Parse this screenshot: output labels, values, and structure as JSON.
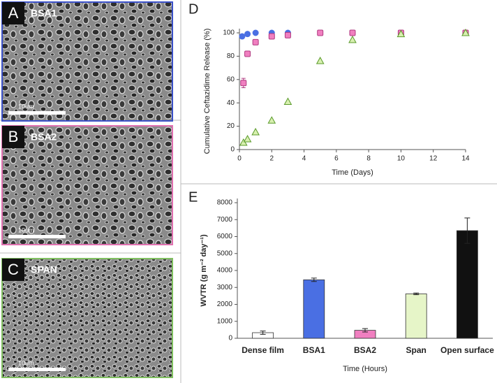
{
  "images": [
    {
      "letter": "A",
      "label": "BSA1",
      "scale_bar": "10um",
      "border": "#3a50c8"
    },
    {
      "letter": "B",
      "label": "BSA2",
      "scale_bar": "10um",
      "border": "#e070b0"
    },
    {
      "letter": "C",
      "label": "SPAN",
      "scale_bar": "10um",
      "border": "#80c060"
    }
  ],
  "chart_data": [
    {
      "type": "scatter",
      "letter": "D",
      "x_label": "Time (Days)",
      "y_label": "Cumulative Ceftazidime Release (%)",
      "xlim": [
        0,
        14
      ],
      "xticks": [
        0,
        2,
        4,
        6,
        8,
        10,
        12,
        14
      ],
      "ylim": [
        0,
        100
      ],
      "yticks": [
        0,
        20,
        40,
        60,
        80,
        100
      ],
      "series": [
        {
          "color": "#4a6fe3",
          "marker": "circle",
          "x": [
            0.17,
            0.5,
            1,
            2,
            3
          ],
          "values": [
            97,
            99,
            100,
            100,
            100
          ]
        },
        {
          "color": "#f07fc0",
          "marker": "square",
          "x": [
            0.25,
            0.5,
            1,
            2,
            3,
            5,
            7,
            10,
            14
          ],
          "values": [
            57,
            82,
            92,
            97,
            98,
            100,
            100,
            100,
            100
          ],
          "errors": [
            4,
            null,
            null,
            null,
            null,
            null,
            null,
            null,
            null
          ]
        },
        {
          "color": "#d8f0b0",
          "marker": "triangle",
          "x": [
            0.25,
            0.5,
            1,
            2,
            3,
            5,
            7,
            10,
            14
          ],
          "values": [
            6,
            9,
            15,
            25,
            41,
            76,
            94,
            99,
            100
          ]
        }
      ]
    },
    {
      "type": "bar",
      "letter": "E",
      "x_label": "Time (Hours)",
      "y_label": "WVTR (g m⁻² day⁻¹)",
      "categories": [
        "Dense film",
        "BSA1",
        "BSA2",
        "Span",
        "Open surface"
      ],
      "values": [
        330,
        3450,
        470,
        2620,
        6350
      ],
      "errors": [
        100,
        100,
        100,
        50,
        750
      ],
      "colors": [
        "#ffffff",
        "#4a6fe3",
        "#f07fc0",
        "#e6f5c8",
        "#111111"
      ],
      "ylim": [
        0,
        8000
      ],
      "yticks": [
        0,
        1000,
        2000,
        3000,
        4000,
        5000,
        6000,
        7000,
        8000
      ]
    }
  ]
}
